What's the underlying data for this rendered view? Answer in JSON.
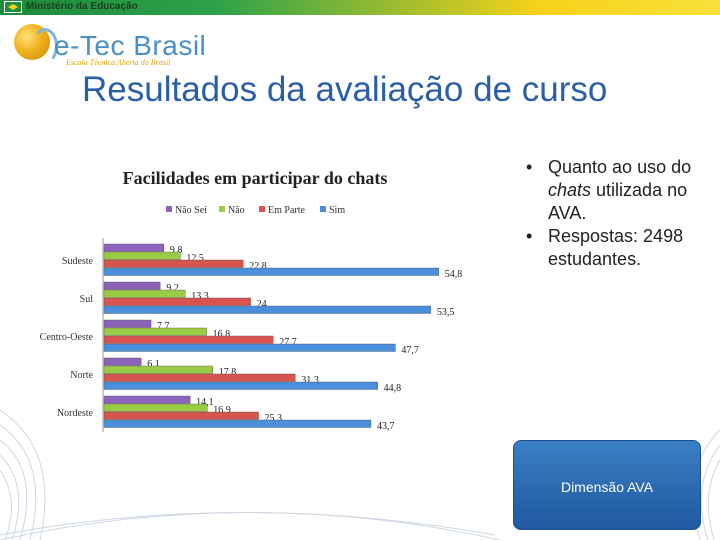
{
  "header": {
    "ministry": "Ministério da Educação",
    "logo_name": "e-Tec Brasil",
    "logo_subtitle": "Escola Técnica Aberta do Brasil"
  },
  "slide": {
    "title": "Resultados da avaliação de curso",
    "bullets": [
      {
        "before": "Quanto ao uso do ",
        "italic": "chats",
        "after": " utilizada no AVA."
      },
      {
        "before": "Respostas: 2498 estudantes.",
        "italic": "",
        "after": ""
      }
    ],
    "dimension_label": "Dimensão AVA"
  },
  "colors": {
    "title": "#2a5fa8",
    "nao_sei": "#8a63b8",
    "nao": "#9acb45",
    "em_parte": "#d9534f",
    "sim": "#4a8fdc",
    "box": "#2a66b0"
  },
  "chart_data": {
    "type": "bar",
    "orientation": "horizontal",
    "title": "Facilidades em participar do chats",
    "categories": [
      "Sudeste",
      "Sul",
      "Centro-Oeste",
      "Norte",
      "Nordeste"
    ],
    "series": [
      {
        "name": "Não Sei",
        "values": [
          "9,8",
          "9,2",
          "7,7",
          "6,1",
          "14,1"
        ]
      },
      {
        "name": "Não",
        "values": [
          "12,5",
          "13,3",
          "16,8",
          "17,8",
          "16,9"
        ]
      },
      {
        "name": "Em Parte",
        "values": [
          "22,8",
          "24",
          "27,7",
          "31,3",
          "25,3"
        ]
      },
      {
        "name": "Sim",
        "values": [
          "54,8",
          "53,5",
          "47,7",
          "44,8",
          "43,7"
        ]
      }
    ],
    "legend": "top",
    "grid": false
  }
}
